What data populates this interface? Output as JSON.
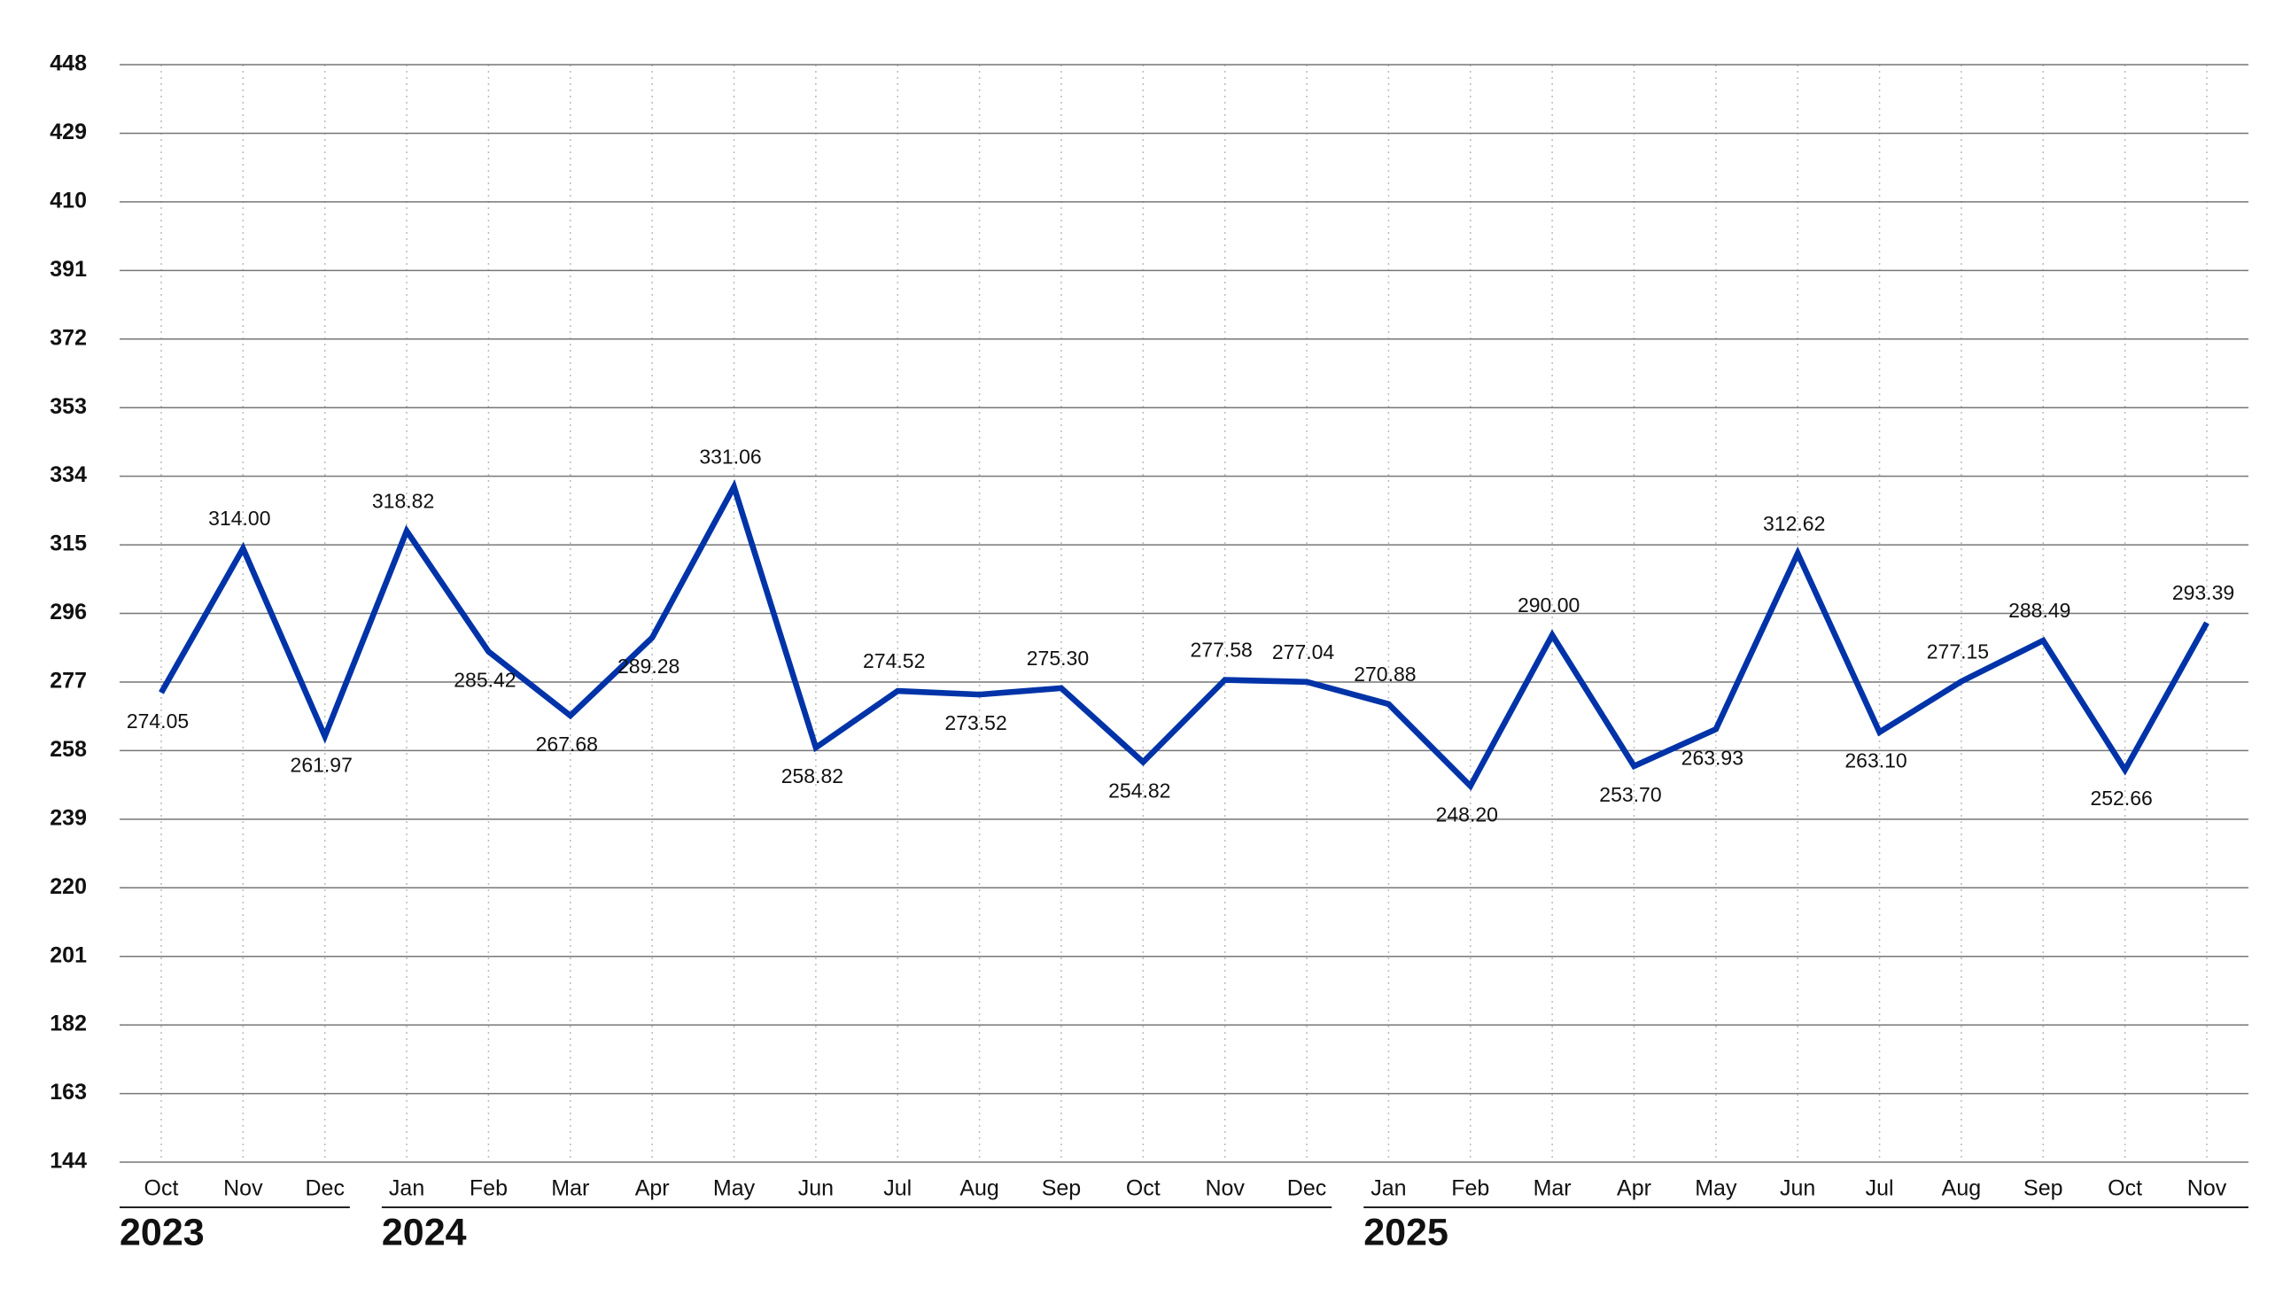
{
  "chart_data": {
    "type": "line",
    "groups": [
      {
        "label": "2023",
        "categories": [
          "Oct",
          "Nov",
          "Dec"
        ]
      },
      {
        "label": "2024",
        "categories": [
          "Jan",
          "Feb",
          "Mar",
          "Apr",
          "May",
          "Jun",
          "Jul",
          "Aug",
          "Sep",
          "Oct",
          "Nov",
          "Dec"
        ]
      },
      {
        "label": "2025",
        "categories": [
          "Jan",
          "Feb",
          "Mar",
          "Apr",
          "May",
          "Jun",
          "Jul",
          "Aug",
          "Sep",
          "Oct",
          "Nov"
        ]
      }
    ],
    "series": [
      {
        "color": "#0033a8",
        "values": [
          274.05,
          314.0,
          261.97,
          318.82,
          285.42,
          267.68,
          289.28,
          331.06,
          258.82,
          274.52,
          273.52,
          275.3,
          254.82,
          277.58,
          277.04,
          270.88,
          248.2,
          290.0,
          253.7,
          263.93,
          312.62,
          263.1,
          277.15,
          288.49,
          252.66,
          293.39
        ],
        "value_labels": [
          "274.05",
          "314.00",
          "261.97",
          "318.82",
          "285.42",
          "267.68",
          "289.28",
          "331.06",
          "258.82",
          "274.52",
          "273.52",
          "275.30",
          "254.82",
          "277.58",
          "277.04",
          "270.88",
          "248.20",
          "290.00",
          "253.70",
          "263.93",
          "312.62",
          "263.10",
          "277.15",
          "288.49",
          "252.66",
          "293.39"
        ]
      }
    ],
    "ylim": [
      144,
      448
    ],
    "yticks": [
      144,
      163,
      182,
      201,
      220,
      239,
      258,
      277,
      296,
      315,
      334,
      353,
      372,
      391,
      410,
      429,
      448
    ],
    "grid": true
  }
}
